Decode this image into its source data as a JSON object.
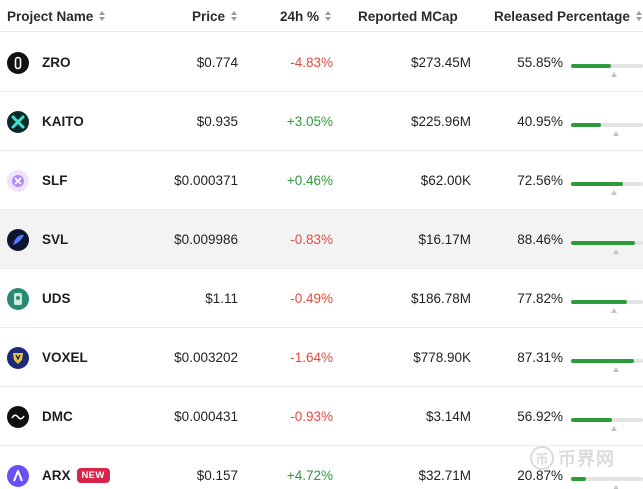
{
  "columns": {
    "project": "Project Name",
    "price": "Price",
    "change": "24h %",
    "mcap": "Reported MCap",
    "released": "Released Percentage"
  },
  "rows": [
    {
      "name": "ZRO",
      "icon": "zro-logo-icon",
      "price": "$0.774",
      "change": "-4.83%",
      "trend": "neg",
      "mcap": "$273.45M",
      "released": "55.85%",
      "released_fraction": 0.5585,
      "highlight": false
    },
    {
      "name": "KAITO",
      "icon": "kaito-logo-icon",
      "price": "$0.935",
      "change": "+3.05%",
      "trend": "pos",
      "mcap": "$225.96M",
      "released": "40.95%",
      "released_fraction": 0.4095,
      "highlight": false
    },
    {
      "name": "SLF",
      "icon": "slf-logo-icon",
      "price": "$0.000371",
      "change": "+0.46%",
      "trend": "pos",
      "mcap": "$62.00K",
      "released": "72.56%",
      "released_fraction": 0.7256,
      "highlight": false
    },
    {
      "name": "SVL",
      "icon": "svl-logo-icon",
      "price": "$0.009986",
      "change": "-0.83%",
      "trend": "neg",
      "mcap": "$16.17M",
      "released": "88.46%",
      "released_fraction": 0.8846,
      "highlight": true
    },
    {
      "name": "UDS",
      "icon": "uds-logo-icon",
      "price": "$1.11",
      "change": "-0.49%",
      "trend": "neg",
      "mcap": "$186.78M",
      "released": "77.82%",
      "released_fraction": 0.7782,
      "highlight": false
    },
    {
      "name": "VOXEL",
      "icon": "voxel-logo-icon",
      "price": "$0.003202",
      "change": "-1.64%",
      "trend": "neg",
      "mcap": "$778.90K",
      "released": "87.31%",
      "released_fraction": 0.8731,
      "highlight": false
    },
    {
      "name": "DMC",
      "icon": "dmc-logo-icon",
      "price": "$0.000431",
      "change": "-0.93%",
      "trend": "neg",
      "mcap": "$3.14M",
      "released": "56.92%",
      "released_fraction": 0.5692,
      "highlight": false
    },
    {
      "name": "ARX",
      "icon": "arx-logo-icon",
      "badge": "NEW",
      "price": "$0.157",
      "change": "+4.72%",
      "trend": "pos",
      "mcap": "$32.71M",
      "released": "20.87%",
      "released_fraction": 0.2087,
      "highlight": false
    }
  ],
  "colors": {
    "positive": "#2e9b3a",
    "negative": "#e04b3f",
    "badge": "#d6244a",
    "bar_fill": "#2e9b3a",
    "bar_track": "#e3e3e3"
  },
  "watermark": {
    "symbol": "币",
    "text": "币界网"
  }
}
